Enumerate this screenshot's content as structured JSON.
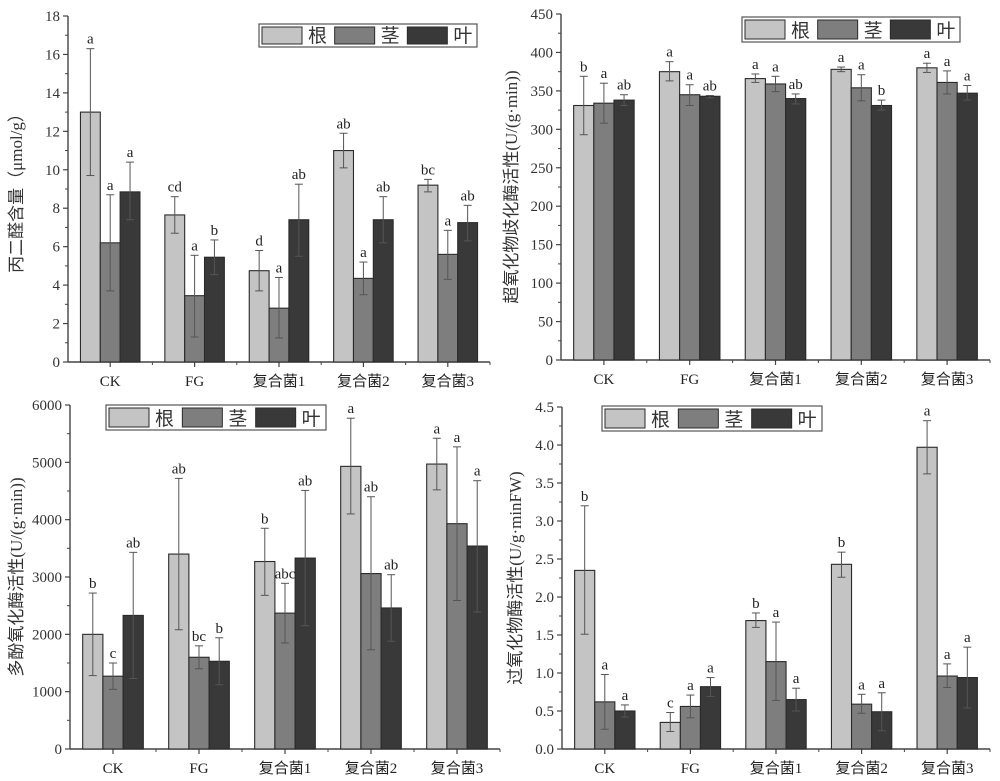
{
  "legend": {
    "items": [
      "根",
      "茎",
      "叶"
    ]
  },
  "colors": {
    "根": "#c4c4c4",
    "茎": "#7e7e7e",
    "叶": "#393939",
    "axis": "#444444",
    "edge": "#2a2a2a",
    "legend_border": "#555555"
  },
  "chart_data": [
    {
      "type": "bar",
      "panel": "top-left",
      "title": "",
      "xlabel": "",
      "ylabel": "丙二醛含量（μmol/g）",
      "ylim": [
        0,
        18
      ],
      "yticks": [
        0,
        2,
        4,
        6,
        8,
        10,
        12,
        14,
        16,
        18
      ],
      "ytick_labels": [
        "0",
        "2",
        "4",
        "6",
        "8",
        "10",
        "12",
        "14",
        "16",
        "18"
      ],
      "grid": false,
      "legend_position": "top-right",
      "categories": [
        "CK",
        "FG",
        "复合菌1",
        "复合菌2",
        "复合菌3"
      ],
      "series": [
        {
          "name": "根",
          "values": [
            13.0,
            7.65,
            4.75,
            11.0,
            9.2
          ],
          "err_low": [
            9.7,
            6.7,
            3.7,
            10.1,
            8.85
          ],
          "err_high": [
            16.3,
            8.6,
            5.8,
            11.9,
            9.5
          ],
          "labels": [
            "a",
            "cd",
            "d",
            "ab",
            "bc"
          ]
        },
        {
          "name": "茎",
          "values": [
            6.2,
            3.45,
            2.8,
            4.35,
            5.6
          ],
          "err_low": [
            3.7,
            1.3,
            1.25,
            3.5,
            4.3
          ],
          "err_high": [
            8.7,
            5.55,
            4.4,
            5.2,
            6.85
          ],
          "labels": [
            "a",
            "a",
            "a",
            "a",
            "a"
          ]
        },
        {
          "name": "叶",
          "values": [
            8.85,
            5.45,
            7.4,
            7.4,
            7.25
          ],
          "err_low": [
            7.4,
            4.55,
            5.5,
            6.2,
            6.3
          ],
          "err_high": [
            10.4,
            6.35,
            9.25,
            8.6,
            8.15
          ],
          "labels": [
            "a",
            "b",
            "ab",
            "ab",
            "ab"
          ]
        }
      ]
    },
    {
      "type": "bar",
      "panel": "top-right",
      "title": "",
      "xlabel": "",
      "ylabel": "超氧化物歧化酶活性(U/(g·min))",
      "ylim": [
        0,
        450
      ],
      "yticks": [
        0,
        50,
        100,
        150,
        200,
        250,
        300,
        350,
        400,
        450
      ],
      "ytick_labels": [
        "0",
        "50",
        "100",
        "150",
        "200",
        "250",
        "300",
        "350",
        "400",
        "450"
      ],
      "grid": false,
      "legend_position": "top-right",
      "categories": [
        "CK",
        "FG",
        "复合菌1",
        "复合菌2",
        "复合菌3"
      ],
      "series": [
        {
          "name": "根",
          "values": [
            331,
            375,
            366,
            378,
            380
          ],
          "err_low": [
            293,
            363,
            361,
            375,
            374
          ],
          "err_high": [
            369,
            388,
            372,
            381,
            386
          ],
          "labels": [
            "b",
            "a",
            "a",
            "a",
            "a"
          ]
        },
        {
          "name": "茎",
          "values": [
            334,
            345,
            359,
            354,
            361
          ],
          "err_low": [
            308,
            331,
            349,
            337,
            346
          ],
          "err_high": [
            360,
            358,
            369,
            371,
            376
          ],
          "labels": [
            "a",
            "a",
            "a",
            "a",
            "a"
          ]
        },
        {
          "name": "叶",
          "values": [
            338,
            343,
            340,
            331,
            347
          ],
          "err_low": [
            331,
            341,
            333,
            325,
            338
          ],
          "err_high": [
            345,
            344,
            346,
            338,
            357
          ],
          "labels": [
            "ab",
            "ab",
            "ab",
            "b",
            "a"
          ]
        }
      ]
    },
    {
      "type": "bar",
      "panel": "bottom-left",
      "title": "",
      "xlabel": "",
      "ylabel": "多酚氧化酶活性(U/(g·min))",
      "ylim": [
        0,
        6000
      ],
      "yticks": [
        0,
        1000,
        2000,
        3000,
        4000,
        5000,
        6000
      ],
      "ytick_labels": [
        "0",
        "1000",
        "2000",
        "3000",
        "4000",
        "5000",
        "6000"
      ],
      "grid": false,
      "legend_position": "top-left",
      "categories": [
        "CK",
        "FG",
        "复合菌1",
        "复合菌2",
        "复合菌3"
      ],
      "series": [
        {
          "name": "根",
          "values": [
            2000,
            3400,
            3270,
            4930,
            4970
          ],
          "err_low": [
            1280,
            2080,
            2680,
            4100,
            4520
          ],
          "err_high": [
            2720,
            4720,
            3850,
            5770,
            5420
          ],
          "labels": [
            "b",
            "ab",
            "b",
            "a",
            "a"
          ]
        },
        {
          "name": "茎",
          "values": [
            1270,
            1600,
            2370,
            3060,
            3930
          ],
          "err_low": [
            1040,
            1400,
            1850,
            1730,
            2590
          ],
          "err_high": [
            1500,
            1800,
            2890,
            4400,
            5270
          ],
          "labels": [
            "c",
            "bc",
            "abc",
            "ab",
            "a"
          ]
        },
        {
          "name": "叶",
          "values": [
            2330,
            1530,
            3330,
            2460,
            3540
          ],
          "err_low": [
            1230,
            1120,
            2150,
            1880,
            2390
          ],
          "err_high": [
            3430,
            1940,
            4510,
            3040,
            4680
          ],
          "labels": [
            "ab",
            "b",
            "ab",
            "ab",
            "a"
          ]
        }
      ]
    },
    {
      "type": "bar",
      "panel": "bottom-right",
      "title": "",
      "xlabel": "",
      "ylabel": "过氧化物酶活性(U/g·minFW)",
      "ylim": [
        0,
        4.5
      ],
      "yticks": [
        0,
        0.5,
        1.0,
        1.5,
        2.0,
        2.5,
        3.0,
        3.5,
        4.0,
        4.5
      ],
      "ytick_labels": [
        "0.0",
        "0.5",
        "1.0",
        "1.5",
        "2.0",
        "2.5",
        "3.0",
        "3.5",
        "4.0",
        "4.5"
      ],
      "grid": false,
      "legend_position": "top-left",
      "categories": [
        "CK",
        "FG",
        "复合菌1",
        "复合菌2",
        "复合菌3"
      ],
      "series": [
        {
          "name": "根",
          "values": [
            2.35,
            0.35,
            1.69,
            2.43,
            3.97
          ],
          "err_low": [
            1.51,
            0.23,
            1.6,
            2.26,
            3.62
          ],
          "err_high": [
            3.2,
            0.48,
            1.79,
            2.59,
            4.32
          ],
          "labels": [
            "b",
            "c",
            "b",
            "b",
            "a"
          ]
        },
        {
          "name": "茎",
          "values": [
            0.62,
            0.56,
            1.15,
            0.59,
            0.96
          ],
          "err_low": [
            0.26,
            0.41,
            0.64,
            0.47,
            0.81
          ],
          "err_high": [
            0.98,
            0.71,
            1.67,
            0.72,
            1.12
          ],
          "labels": [
            "a",
            "a",
            "a",
            "a",
            "a"
          ]
        },
        {
          "name": "叶",
          "values": [
            0.5,
            0.82,
            0.65,
            0.49,
            0.94
          ],
          "err_low": [
            0.42,
            0.69,
            0.5,
            0.24,
            0.54
          ],
          "err_high": [
            0.58,
            0.94,
            0.8,
            0.74,
            1.34
          ],
          "labels": [
            "a",
            "a",
            "a",
            "a",
            "a"
          ]
        }
      ]
    }
  ]
}
